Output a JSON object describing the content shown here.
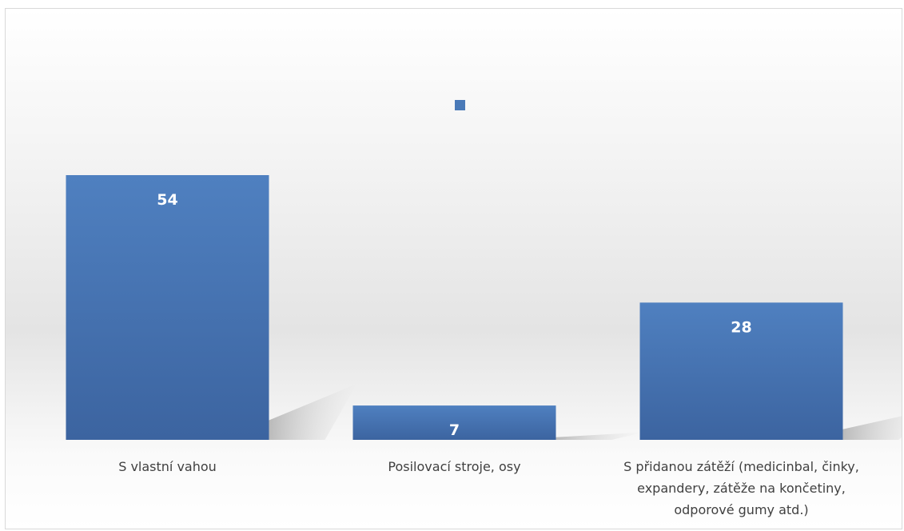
{
  "chart_data": {
    "type": "bar",
    "categories": [
      [
        "S vlastní vahou"
      ],
      [
        "Posilovací stroje, osy"
      ],
      [
        "S přidanou zátěží (medicinbal, činky,",
        "expandery, zátěže na končetiny,",
        "odporové gumy atd.)"
      ]
    ],
    "values": [
      54,
      7,
      28
    ],
    "data_labels": [
      "54",
      "7",
      "28"
    ],
    "title": "",
    "xlabel": "",
    "ylabel": "",
    "ylim": [
      0,
      80
    ],
    "grid": false,
    "legend": "top-center",
    "bar_color": "#4a7ab8",
    "bar_color_dark": "#3d66a3"
  }
}
